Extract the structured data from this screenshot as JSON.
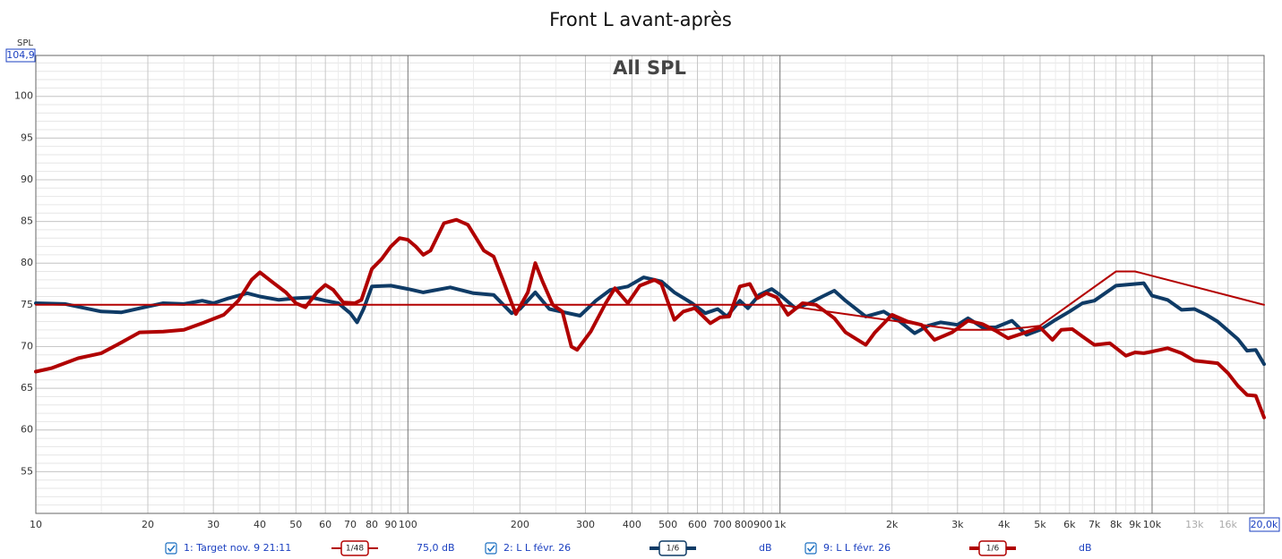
{
  "chart_data": {
    "type": "line",
    "title": "Front L avant-après",
    "annotation": "All SPL",
    "y_label": "SPL",
    "xscale": "log",
    "xlim": [
      10,
      20000
    ],
    "ylim": [
      50,
      104.9
    ],
    "grid": true,
    "xticks": [
      10,
      20,
      30,
      40,
      50,
      60,
      70,
      80,
      90,
      100,
      200,
      300,
      400,
      500,
      600,
      700,
      800,
      900,
      {
        "value": 1000,
        "label": "1k"
      },
      {
        "value": 2000,
        "label": "2k"
      },
      {
        "value": 3000,
        "label": "3k"
      },
      {
        "value": 4000,
        "label": "4k"
      },
      {
        "value": 5000,
        "label": "5k"
      },
      {
        "value": 6000,
        "label": "6k"
      },
      {
        "value": 7000,
        "label": "7k"
      },
      {
        "value": 8000,
        "label": "8k"
      },
      {
        "value": 9000,
        "label": "9k"
      },
      {
        "value": 10000,
        "label": "10k"
      },
      {
        "value": 13000,
        "label": "13k"
      },
      {
        "value": 16000,
        "label": "16k"
      },
      {
        "value": 20000,
        "label": "20,0k"
      }
    ],
    "yticks": [
      55,
      60,
      65,
      70,
      75,
      80,
      85,
      90,
      95,
      100,
      {
        "value": 104.9,
        "label": "104,9"
      }
    ],
    "series": [
      {
        "name": "1: Target nov. 9 21:11",
        "smoothing": "1/48",
        "level": "75,0 dB",
        "color": "#b30000",
        "width": 2,
        "x": [
          10,
          1000,
          3000,
          4000,
          5000,
          8000,
          9000,
          20000
        ],
        "values": [
          75,
          75,
          72,
          72,
          72.5,
          79,
          79,
          75
        ]
      },
      {
        "name": "2: L L févr. 26",
        "smoothing": "1/6",
        "level": "dB",
        "color": "#0f3b66",
        "width": 4,
        "x": [
          10,
          12,
          15,
          17,
          20,
          22,
          25,
          28,
          30,
          33,
          37,
          40,
          45,
          50,
          55,
          60,
          65,
          70,
          73,
          76,
          80,
          90,
          100,
          110,
          130,
          150,
          170,
          190,
          200,
          220,
          240,
          270,
          290,
          320,
          350,
          390,
          430,
          480,
          520,
          580,
          630,
          680,
          720,
          780,
          820,
          880,
          950,
          1000,
          1100,
          1200,
          1300,
          1400,
          1500,
          1700,
          1900,
          2100,
          2300,
          2500,
          2700,
          3000,
          3200,
          3500,
          3800,
          4200,
          4600,
          5000,
          5500,
          6000,
          6500,
          7000,
          8000,
          9000,
          9500,
          10000,
          11000,
          12000,
          13000,
          14000,
          15000,
          17000,
          18000,
          19000,
          20000
        ],
        "values": [
          75.2,
          75.1,
          74.2,
          74.1,
          74.8,
          75.2,
          75.1,
          75.5,
          75.2,
          75.8,
          76.4,
          76,
          75.6,
          75.8,
          75.9,
          75.5,
          75.2,
          74,
          72.9,
          74.5,
          77.2,
          77.3,
          76.9,
          76.5,
          77.1,
          76.4,
          76.2,
          74,
          74.5,
          76.5,
          74.5,
          74,
          73.7,
          75.5,
          76.8,
          77.2,
          78.3,
          77.8,
          76.5,
          75.2,
          74,
          74.5,
          73.6,
          75.5,
          74.6,
          76.2,
          76.9,
          76.2,
          74.6,
          75.2,
          76,
          76.7,
          75.5,
          73.6,
          74.2,
          73,
          71.6,
          72.5,
          72.9,
          72.6,
          73.4,
          72.3,
          72.3,
          73.1,
          71.4,
          72,
          73.2,
          74.2,
          75.2,
          75.5,
          77.3,
          77.5,
          77.6,
          76.1,
          75.6,
          74.4,
          74.5,
          73.8,
          73,
          70.9,
          69.5,
          69.6,
          67.9
        ]
      },
      {
        "name": "9: L L févr. 26",
        "smoothing": "1/6",
        "level": "dB",
        "color": "#b00000",
        "width": 4,
        "x": [
          10,
          11,
          13,
          15,
          17,
          19,
          22,
          25,
          28,
          32,
          35,
          38,
          40,
          43,
          47,
          50,
          53,
          57,
          60,
          63,
          67,
          72,
          75,
          80,
          85,
          90,
          95,
          100,
          105,
          110,
          115,
          125,
          135,
          145,
          160,
          170,
          180,
          195,
          210,
          220,
          230,
          245,
          260,
          275,
          285,
          310,
          340,
          360,
          390,
          420,
          460,
          480,
          520,
          550,
          590,
          650,
          690,
          730,
          780,
          830,
          870,
          920,
          980,
          1050,
          1150,
          1250,
          1400,
          1500,
          1700,
          1800,
          2000,
          2200,
          2400,
          2600,
          2900,
          3200,
          3500,
          3800,
          4100,
          4500,
          5000,
          5400,
          5700,
          6100,
          6500,
          7000,
          7700,
          8500,
          9000,
          9500,
          10000,
          11000,
          12000,
          13000,
          15000,
          16000,
          17000,
          18000,
          19000,
          20000
        ],
        "values": [
          67,
          67.4,
          68.6,
          69.2,
          70.5,
          71.7,
          71.8,
          72,
          72.8,
          73.8,
          75.5,
          78,
          78.9,
          77.8,
          76.5,
          75.2,
          74.7,
          76.5,
          77.4,
          76.8,
          75.3,
          75.2,
          75.6,
          79.3,
          80.5,
          82,
          83,
          82.8,
          82,
          81,
          81.5,
          84.8,
          85.2,
          84.6,
          81.5,
          80.8,
          78,
          73.9,
          76.5,
          80,
          77.8,
          75,
          74.2,
          70,
          69.6,
          71.8,
          75.2,
          77,
          75.2,
          77.3,
          78,
          77.5,
          73.2,
          74.2,
          74.6,
          72.8,
          73.5,
          73.6,
          77.2,
          77.5,
          75.8,
          76.4,
          75.9,
          73.8,
          75.2,
          75,
          73.4,
          71.7,
          70.2,
          71.7,
          73.8,
          73,
          72.6,
          70.8,
          71.7,
          73.1,
          72.7,
          71.9,
          71,
          71.6,
          72.3,
          70.8,
          72,
          72.1,
          71.2,
          70.2,
          70.4,
          68.9,
          69.3,
          69.2,
          69.4,
          69.8,
          69.2,
          68.3,
          68,
          66.8,
          65.3,
          64.2,
          64.1,
          61.5
        ]
      }
    ]
  }
}
